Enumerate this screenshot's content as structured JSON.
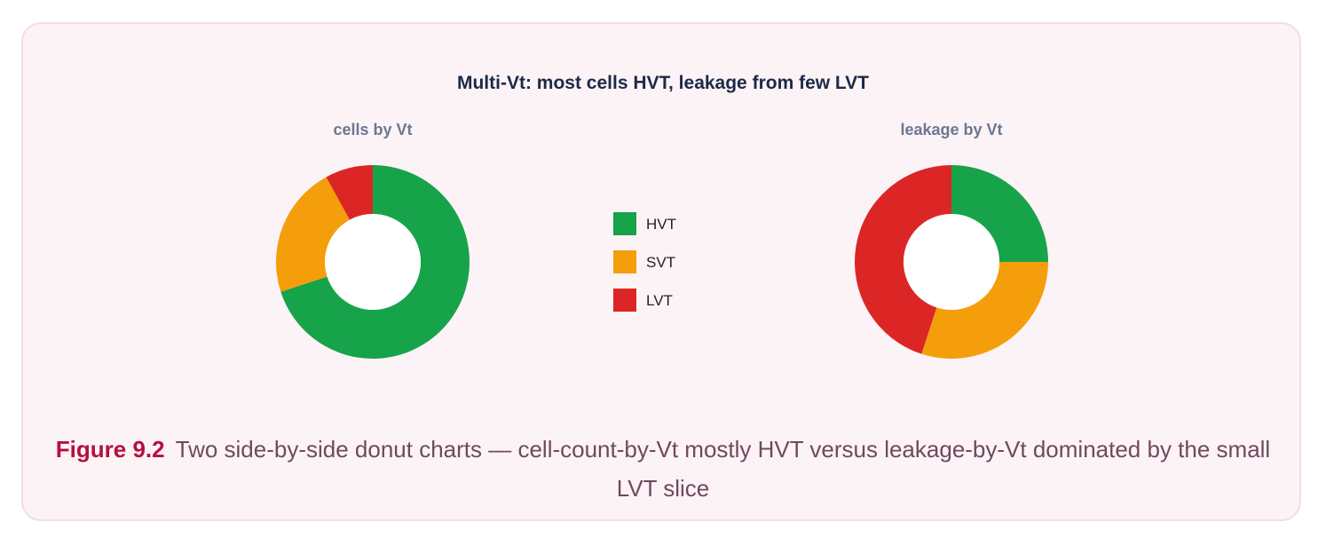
{
  "chart_data": [
    {
      "type": "pie",
      "subtitle": "cells by Vt",
      "categories": [
        "HVT",
        "SVT",
        "LVT"
      ],
      "values": [
        70,
        22,
        8
      ],
      "colors": [
        "#17a34a",
        "#f59e0b",
        "#dc2626"
      ]
    },
    {
      "type": "pie",
      "subtitle": "leakage by Vt",
      "categories": [
        "HVT",
        "SVT",
        "LVT"
      ],
      "values": [
        25,
        30,
        45
      ],
      "colors": [
        "#17a34a",
        "#f59e0b",
        "#dc2626"
      ]
    }
  ],
  "title": "Multi-Vt: most cells HVT, leakage from few LVT",
  "legend": [
    {
      "label": "HVT",
      "color": "#17a34a"
    },
    {
      "label": "SVT",
      "color": "#f59e0b"
    },
    {
      "label": "LVT",
      "color": "#dc2626"
    }
  ],
  "caption": {
    "label": "Figure 9.2",
    "text": "Two side-by-side donut charts — cell-count-by-Vt mostly HVT versus leakage-by-Vt dominated by the small LVT slice"
  }
}
